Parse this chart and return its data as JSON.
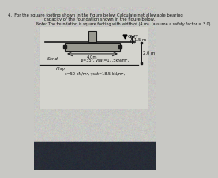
{
  "title_line1": "4.  For the square footing shown in the figure below Calculate net allowable bearing",
  "title_line2": "      capacity of the foundation shown in the figure below.",
  "note_line": "Note: The foundation is square footing with width of (4 m). (assume a safety factor = 3.0)",
  "gwt_label": "GWT",
  "depth_gwt": "1.5 m",
  "footing_width": "4.0m",
  "sand_label": "Sand",
  "sand_props": "φ=35°, γsat=17.5kN/m³,",
  "sand_depth": "2.0 m",
  "clay_label": "Clay",
  "clay_props": "c=50 kN/m², γsat=18.5 kN/m²,",
  "bg_top": "#c8c8c4",
  "bg_bottom": "#b0b0ac",
  "diagram_bg": "#d8d8d2",
  "footing_color": "#888880",
  "line_color": "#1a1a1a",
  "text_color": "#111111",
  "dark_bar_color": "#888880"
}
